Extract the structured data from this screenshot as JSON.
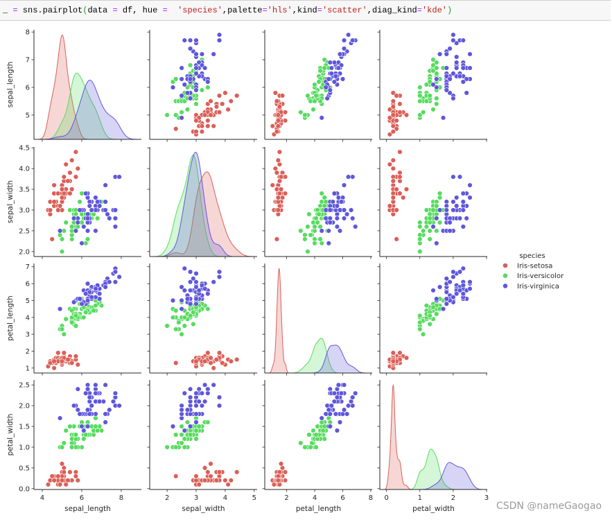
{
  "code_cell": {
    "tokens": [
      {
        "text": "_ ",
        "kind": "plain"
      },
      {
        "text": "=",
        "kind": "op"
      },
      {
        "text": " sns.pairplot",
        "kind": "plain"
      },
      {
        "text": "(",
        "kind": "paren"
      },
      {
        "text": "data ",
        "kind": "plain"
      },
      {
        "text": "=",
        "kind": "op"
      },
      {
        "text": " df, hue ",
        "kind": "plain"
      },
      {
        "text": "=",
        "kind": "op"
      },
      {
        "text": "  ",
        "kind": "plain"
      },
      {
        "text": "'species'",
        "kind": "str"
      },
      {
        "text": ",palette",
        "kind": "plain"
      },
      {
        "text": "=",
        "kind": "op"
      },
      {
        "text": "'hls'",
        "kind": "str"
      },
      {
        "text": ",kind",
        "kind": "plain"
      },
      {
        "text": "=",
        "kind": "op"
      },
      {
        "text": "'scatter'",
        "kind": "str"
      },
      {
        "text": ",diag_kind",
        "kind": "plain"
      },
      {
        "text": "=",
        "kind": "op"
      },
      {
        "text": "'kde'",
        "kind": "str"
      },
      {
        "text": ")",
        "kind": "paren"
      }
    ]
  },
  "watermark": "CSDN @nameGaogao",
  "chart_data": {
    "type": "scatter",
    "layout": "pairplot",
    "diag_type": "kde",
    "grid": false,
    "variables": [
      {
        "name": "sepal_length",
        "lim": [
          3.58,
          9.02
        ],
        "scatter_lim": [
          4.12,
          8.08
        ],
        "ticks": [
          4,
          6,
          8
        ],
        "tick_labels": [
          "4",
          "6",
          "8"
        ],
        "row_ticks": [
          5,
          6,
          7,
          8
        ],
        "row_tick_labels": [
          "5",
          "6",
          "7",
          "8"
        ]
      },
      {
        "name": "sepal_width",
        "lim": [
          1.4,
          5.1
        ],
        "scatter_lim": [
          1.88,
          4.52
        ],
        "ticks": [
          2,
          3,
          4,
          5
        ],
        "tick_labels": [
          "2",
          "3",
          "4",
          "5"
        ],
        "row_ticks": [
          2.0,
          2.5,
          3.0,
          3.5,
          4.0,
          4.5
        ],
        "row_tick_labels": [
          "2.0",
          "2.5",
          "3.0",
          "3.5",
          "4.0",
          "4.5"
        ]
      },
      {
        "name": "petal_length",
        "lim": [
          0.44,
          8.1
        ],
        "scatter_lim": [
          0.705,
          7.195
        ],
        "ticks": [
          2,
          4,
          6,
          8
        ],
        "tick_labels": [
          "2",
          "4",
          "6",
          "8"
        ],
        "row_ticks": [
          1,
          2,
          3,
          4,
          5,
          6,
          7
        ],
        "row_tick_labels": [
          "1",
          "2",
          "3",
          "4",
          "5",
          "6",
          "7"
        ]
      },
      {
        "name": "petal_width",
        "lim": [
          -0.2,
          3.02
        ],
        "scatter_lim": [
          -0.02,
          2.62
        ],
        "ticks": [
          0,
          1,
          2,
          3
        ],
        "tick_labels": [
          "0",
          "1",
          "2",
          "3"
        ],
        "row_ticks": [
          0.0,
          0.5,
          1.0,
          1.5,
          2.0,
          2.5
        ],
        "row_tick_labels": [
          "0.0",
          "0.5",
          "1.0",
          "1.5",
          "2.0",
          "2.5"
        ]
      }
    ],
    "legend": {
      "title": "species",
      "placement": "right",
      "entries": [
        "Iris-setosa",
        "Iris-versicolor",
        "Iris-virginica"
      ]
    },
    "series": [
      {
        "name": "Iris-setosa",
        "color": "#db5f57",
        "points": [
          [
            5.1,
            3.5,
            1.4,
            0.2
          ],
          [
            4.9,
            3.0,
            1.4,
            0.2
          ],
          [
            4.7,
            3.2,
            1.3,
            0.2
          ],
          [
            4.6,
            3.1,
            1.5,
            0.2
          ],
          [
            5.0,
            3.6,
            1.4,
            0.2
          ],
          [
            5.4,
            3.9,
            1.7,
            0.4
          ],
          [
            4.6,
            3.4,
            1.4,
            0.3
          ],
          [
            5.0,
            3.4,
            1.5,
            0.2
          ],
          [
            4.4,
            2.9,
            1.4,
            0.2
          ],
          [
            4.9,
            3.1,
            1.5,
            0.1
          ],
          [
            5.4,
            3.7,
            1.5,
            0.2
          ],
          [
            4.8,
            3.4,
            1.6,
            0.2
          ],
          [
            4.8,
            3.0,
            1.4,
            0.1
          ],
          [
            4.3,
            3.0,
            1.1,
            0.1
          ],
          [
            5.8,
            4.0,
            1.2,
            0.2
          ],
          [
            5.7,
            4.4,
            1.5,
            0.4
          ],
          [
            5.4,
            3.9,
            1.3,
            0.4
          ],
          [
            5.1,
            3.5,
            1.4,
            0.3
          ],
          [
            5.7,
            3.8,
            1.7,
            0.3
          ],
          [
            5.1,
            3.8,
            1.5,
            0.3
          ],
          [
            5.4,
            3.4,
            1.7,
            0.2
          ],
          [
            5.1,
            3.7,
            1.5,
            0.4
          ],
          [
            4.6,
            3.6,
            1.0,
            0.2
          ],
          [
            5.1,
            3.3,
            1.7,
            0.5
          ],
          [
            4.8,
            3.4,
            1.9,
            0.2
          ],
          [
            5.0,
            3.0,
            1.6,
            0.2
          ],
          [
            5.0,
            3.4,
            1.6,
            0.4
          ],
          [
            5.2,
            3.5,
            1.5,
            0.2
          ],
          [
            5.2,
            3.4,
            1.4,
            0.2
          ],
          [
            4.7,
            3.2,
            1.6,
            0.2
          ],
          [
            4.8,
            3.1,
            1.6,
            0.2
          ],
          [
            5.4,
            3.4,
            1.5,
            0.4
          ],
          [
            5.2,
            4.1,
            1.5,
            0.1
          ],
          [
            5.5,
            4.2,
            1.4,
            0.2
          ],
          [
            4.9,
            3.1,
            1.5,
            0.1
          ],
          [
            5.0,
            3.2,
            1.2,
            0.2
          ],
          [
            5.5,
            3.5,
            1.3,
            0.2
          ],
          [
            4.9,
            3.1,
            1.5,
            0.1
          ],
          [
            4.4,
            3.0,
            1.3,
            0.2
          ],
          [
            5.1,
            3.4,
            1.5,
            0.2
          ],
          [
            5.0,
            3.5,
            1.3,
            0.3
          ],
          [
            4.5,
            2.3,
            1.3,
            0.3
          ],
          [
            4.4,
            3.2,
            1.3,
            0.2
          ],
          [
            5.0,
            3.5,
            1.6,
            0.6
          ],
          [
            5.1,
            3.8,
            1.9,
            0.4
          ],
          [
            4.8,
            3.0,
            1.4,
            0.3
          ],
          [
            5.1,
            3.8,
            1.6,
            0.2
          ],
          [
            4.6,
            3.2,
            1.4,
            0.2
          ],
          [
            5.3,
            3.7,
            1.5,
            0.2
          ],
          [
            5.0,
            3.3,
            1.4,
            0.2
          ]
        ]
      },
      {
        "name": "Iris-versicolor",
        "color": "#57db5f",
        "points": [
          [
            7.0,
            3.2,
            4.7,
            1.4
          ],
          [
            6.4,
            3.2,
            4.5,
            1.5
          ],
          [
            6.9,
            3.1,
            4.9,
            1.5
          ],
          [
            5.5,
            2.3,
            4.0,
            1.3
          ],
          [
            6.5,
            2.8,
            4.6,
            1.5
          ],
          [
            5.7,
            2.8,
            4.5,
            1.3
          ],
          [
            6.3,
            3.3,
            4.7,
            1.6
          ],
          [
            4.9,
            2.4,
            3.3,
            1.0
          ],
          [
            6.6,
            2.9,
            4.6,
            1.3
          ],
          [
            5.2,
            2.7,
            3.9,
            1.4
          ],
          [
            5.0,
            2.0,
            3.5,
            1.0
          ],
          [
            5.9,
            3.0,
            4.2,
            1.5
          ],
          [
            6.0,
            2.2,
            4.0,
            1.0
          ],
          [
            6.1,
            2.9,
            4.7,
            1.4
          ],
          [
            5.6,
            2.9,
            3.6,
            1.3
          ],
          [
            6.7,
            3.1,
            4.4,
            1.4
          ],
          [
            5.6,
            3.0,
            4.5,
            1.5
          ],
          [
            5.8,
            2.7,
            4.1,
            1.0
          ],
          [
            6.2,
            2.2,
            4.5,
            1.5
          ],
          [
            5.6,
            2.5,
            3.9,
            1.1
          ],
          [
            5.9,
            3.2,
            4.8,
            1.8
          ],
          [
            6.1,
            2.8,
            4.0,
            1.3
          ],
          [
            6.3,
            2.5,
            4.9,
            1.5
          ],
          [
            6.1,
            2.8,
            4.7,
            1.2
          ],
          [
            6.4,
            2.9,
            4.3,
            1.3
          ],
          [
            6.6,
            3.0,
            4.4,
            1.4
          ],
          [
            6.8,
            2.8,
            4.8,
            1.4
          ],
          [
            6.7,
            3.0,
            5.0,
            1.7
          ],
          [
            6.0,
            2.9,
            4.5,
            1.5
          ],
          [
            5.7,
            2.6,
            3.5,
            1.0
          ],
          [
            5.5,
            2.4,
            3.8,
            1.1
          ],
          [
            5.5,
            2.4,
            3.7,
            1.0
          ],
          [
            5.8,
            2.7,
            3.9,
            1.2
          ],
          [
            6.0,
            2.7,
            5.1,
            1.6
          ],
          [
            5.4,
            3.0,
            4.5,
            1.5
          ],
          [
            6.0,
            3.4,
            4.5,
            1.6
          ],
          [
            6.7,
            3.1,
            4.7,
            1.5
          ],
          [
            6.3,
            2.3,
            4.4,
            1.3
          ],
          [
            5.6,
            3.0,
            4.1,
            1.3
          ],
          [
            5.5,
            2.5,
            4.0,
            1.3
          ],
          [
            5.5,
            2.6,
            4.4,
            1.2
          ],
          [
            6.1,
            3.0,
            4.6,
            1.4
          ],
          [
            5.8,
            2.6,
            4.0,
            1.2
          ],
          [
            5.0,
            2.3,
            3.3,
            1.0
          ],
          [
            5.6,
            2.7,
            4.2,
            1.3
          ],
          [
            5.7,
            3.0,
            4.2,
            1.2
          ],
          [
            5.7,
            2.9,
            4.2,
            1.3
          ],
          [
            6.2,
            2.9,
            4.3,
            1.3
          ],
          [
            5.1,
            2.5,
            3.0,
            1.1
          ],
          [
            5.7,
            2.8,
            4.1,
            1.3
          ]
        ]
      },
      {
        "name": "Iris-virginica",
        "color": "#5f57db",
        "points": [
          [
            6.3,
            3.3,
            6.0,
            2.5
          ],
          [
            5.8,
            2.7,
            5.1,
            1.9
          ],
          [
            7.1,
            3.0,
            5.9,
            2.1
          ],
          [
            6.3,
            2.9,
            5.6,
            1.8
          ],
          [
            6.5,
            3.0,
            5.8,
            2.2
          ],
          [
            7.6,
            3.0,
            6.6,
            2.1
          ],
          [
            4.9,
            2.5,
            4.5,
            1.7
          ],
          [
            7.3,
            2.9,
            6.3,
            1.8
          ],
          [
            6.7,
            2.5,
            5.8,
            1.8
          ],
          [
            7.2,
            3.6,
            6.1,
            2.5
          ],
          [
            6.5,
            3.2,
            5.1,
            2.0
          ],
          [
            6.4,
            2.7,
            5.3,
            1.9
          ],
          [
            6.8,
            3.0,
            5.5,
            2.1
          ],
          [
            5.7,
            2.5,
            5.0,
            2.0
          ],
          [
            5.8,
            2.8,
            5.1,
            2.4
          ],
          [
            6.4,
            3.2,
            5.3,
            2.3
          ],
          [
            6.5,
            3.0,
            5.5,
            1.8
          ],
          [
            7.7,
            3.8,
            6.7,
            2.2
          ],
          [
            7.7,
            2.6,
            6.9,
            2.3
          ],
          [
            6.0,
            2.2,
            5.0,
            1.5
          ],
          [
            6.9,
            3.2,
            5.7,
            2.3
          ],
          [
            5.6,
            2.8,
            4.9,
            2.0
          ],
          [
            7.7,
            2.8,
            6.7,
            2.0
          ],
          [
            6.3,
            2.7,
            4.9,
            1.8
          ],
          [
            6.7,
            3.3,
            5.7,
            2.1
          ],
          [
            7.2,
            3.2,
            6.0,
            1.8
          ],
          [
            6.2,
            2.8,
            4.8,
            1.8
          ],
          [
            6.1,
            3.0,
            4.9,
            1.8
          ],
          [
            6.4,
            2.8,
            5.6,
            2.1
          ],
          [
            7.2,
            3.0,
            5.8,
            1.6
          ],
          [
            7.4,
            2.8,
            6.1,
            1.9
          ],
          [
            7.9,
            3.8,
            6.4,
            2.0
          ],
          [
            6.4,
            2.8,
            5.6,
            2.2
          ],
          [
            6.3,
            2.8,
            5.1,
            1.5
          ],
          [
            6.1,
            2.6,
            5.6,
            1.4
          ],
          [
            7.7,
            3.0,
            6.1,
            2.3
          ],
          [
            6.3,
            3.4,
            5.6,
            2.4
          ],
          [
            6.4,
            3.1,
            5.5,
            1.8
          ],
          [
            6.0,
            3.0,
            4.8,
            1.8
          ],
          [
            6.9,
            3.1,
            5.4,
            2.1
          ],
          [
            6.7,
            3.1,
            5.6,
            2.4
          ],
          [
            6.9,
            3.1,
            5.1,
            2.3
          ],
          [
            5.8,
            2.7,
            5.1,
            1.9
          ],
          [
            6.8,
            3.2,
            5.9,
            2.3
          ],
          [
            6.7,
            3.3,
            5.7,
            2.5
          ],
          [
            6.7,
            3.0,
            5.2,
            2.3
          ],
          [
            6.3,
            2.5,
            5.0,
            1.9
          ],
          [
            6.5,
            3.0,
            5.2,
            2.0
          ],
          [
            6.2,
            3.4,
            5.4,
            2.3
          ],
          [
            5.9,
            3.0,
            5.1,
            1.8
          ]
        ]
      }
    ]
  }
}
